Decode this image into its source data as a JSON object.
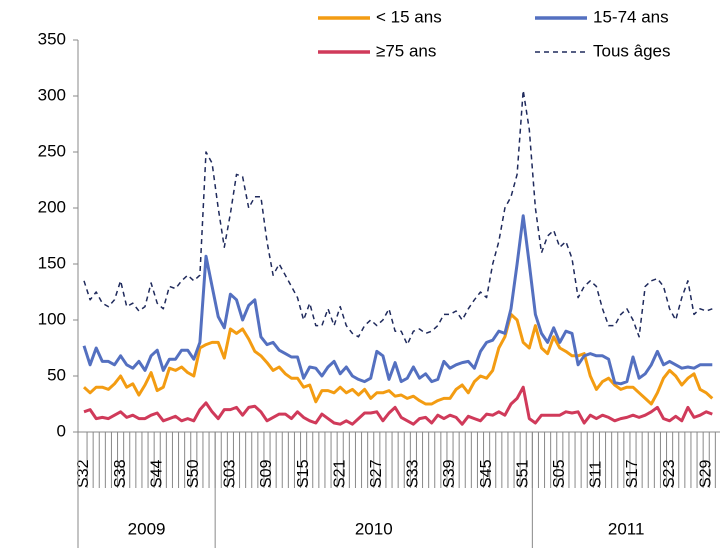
{
  "chart_data": {
    "type": "line",
    "categories": [
      "S32",
      null,
      null,
      null,
      null,
      null,
      "S38",
      null,
      null,
      null,
      null,
      null,
      "S44",
      null,
      null,
      null,
      null,
      null,
      "S50",
      null,
      null,
      null,
      null,
      null,
      "S03",
      null,
      null,
      null,
      null,
      null,
      "S09",
      null,
      null,
      null,
      null,
      null,
      "S15",
      null,
      null,
      null,
      null,
      null,
      "S21",
      null,
      null,
      null,
      null,
      null,
      "S27",
      null,
      null,
      null,
      null,
      null,
      "S33",
      null,
      null,
      null,
      null,
      null,
      "S39",
      null,
      null,
      null,
      null,
      null,
      "S45",
      null,
      null,
      null,
      null,
      null,
      "S51",
      null,
      null,
      null,
      null,
      null,
      "S05",
      null,
      null,
      null,
      null,
      null,
      "S11",
      null,
      null,
      null,
      null,
      null,
      "S17",
      null,
      null,
      null,
      null,
      null,
      "S23",
      null,
      null,
      null,
      null,
      null,
      "S29",
      null
    ],
    "years": [
      "2009",
      "2010",
      "2011"
    ],
    "series": [
      {
        "name": "< 15 ans",
        "color": "#f39c12",
        "dashed": false,
        "values": [
          40,
          35,
          40,
          40,
          38,
          43,
          50,
          40,
          43,
          33,
          42,
          53,
          37,
          40,
          57,
          55,
          58,
          53,
          50,
          75,
          78,
          80,
          80,
          66,
          92,
          88,
          92,
          83,
          72,
          68,
          62,
          55,
          58,
          52,
          48,
          48,
          40,
          42,
          27,
          37,
          37,
          35,
          40,
          35,
          38,
          33,
          38,
          30,
          35,
          35,
          37,
          32,
          33,
          30,
          32,
          28,
          25,
          25,
          28,
          30,
          30,
          38,
          42,
          35,
          45,
          50,
          48,
          55,
          75,
          85,
          105,
          100,
          80,
          75,
          95,
          75,
          70,
          85,
          75,
          72,
          68,
          68,
          70,
          50,
          38,
          45,
          48,
          42,
          38,
          40,
          40,
          35,
          30,
          25,
          35,
          48,
          55,
          50,
          42,
          48,
          52,
          38,
          35,
          30
        ]
      },
      {
        "name": "15-74 ans",
        "color": "#5470c0",
        "dashed": false,
        "values": [
          77,
          60,
          75,
          63,
          63,
          60,
          68,
          60,
          57,
          63,
          55,
          68,
          73,
          55,
          65,
          65,
          73,
          73,
          65,
          80,
          157,
          130,
          103,
          93,
          123,
          118,
          100,
          113,
          118,
          85,
          78,
          80,
          73,
          70,
          67,
          67,
          48,
          58,
          57,
          50,
          58,
          63,
          52,
          58,
          50,
          47,
          45,
          48,
          72,
          68,
          47,
          62,
          45,
          48,
          58,
          48,
          52,
          45,
          47,
          63,
          57,
          60,
          62,
          63,
          57,
          72,
          80,
          82,
          90,
          88,
          110,
          150,
          193,
          150,
          105,
          88,
          80,
          93,
          80,
          90,
          88,
          60,
          68,
          70,
          68,
          68,
          65,
          44,
          43,
          45,
          67,
          48,
          52,
          60,
          72,
          60,
          63,
          60,
          57,
          58,
          57,
          60,
          60,
          60
        ]
      },
      {
        "name": "≥75 ans",
        "color": "#d03a5a",
        "dashed": false,
        "values": [
          18,
          20,
          12,
          13,
          12,
          15,
          18,
          13,
          15,
          12,
          12,
          15,
          17,
          10,
          12,
          14,
          10,
          12,
          10,
          20,
          26,
          18,
          12,
          20,
          20,
          22,
          15,
          22,
          23,
          18,
          10,
          13,
          16,
          16,
          12,
          18,
          13,
          10,
          8,
          16,
          12,
          8,
          7,
          10,
          7,
          12,
          17,
          17,
          18,
          10,
          17,
          22,
          13,
          10,
          7,
          12,
          13,
          8,
          15,
          12,
          15,
          13,
          7,
          14,
          12,
          10,
          16,
          15,
          18,
          15,
          25,
          30,
          40,
          12,
          8,
          15,
          15,
          15,
          15,
          18,
          17,
          18,
          8,
          15,
          12,
          15,
          13,
          10,
          12,
          13,
          15,
          13,
          15,
          18,
          22,
          12,
          10,
          14,
          10,
          22,
          13,
          15,
          18,
          16
        ]
      },
      {
        "name": "Tous âges",
        "color": "#1f2a5c",
        "dashed": true,
        "values": [
          135,
          118,
          125,
          115,
          112,
          118,
          135,
          112,
          115,
          108,
          112,
          133,
          115,
          110,
          130,
          128,
          135,
          140,
          135,
          140,
          250,
          240,
          200,
          165,
          195,
          230,
          228,
          200,
          210,
          210,
          170,
          140,
          150,
          140,
          130,
          120,
          100,
          115,
          95,
          95,
          110,
          95,
          112,
          95,
          88,
          85,
          95,
          100,
          95,
          100,
          110,
          90,
          90,
          78,
          90,
          92,
          88,
          90,
          95,
          105,
          105,
          108,
          100,
          110,
          118,
          125,
          120,
          150,
          170,
          200,
          210,
          230,
          305,
          270,
          200,
          160,
          175,
          180,
          165,
          170,
          155,
          120,
          130,
          135,
          130,
          110,
          95,
          95,
          105,
          110,
          100,
          85,
          130,
          135,
          137,
          130,
          110,
          100,
          120,
          135,
          105,
          110,
          108,
          110
        ]
      }
    ],
    "ylim": [
      0,
      350
    ],
    "yticks": [
      0,
      50,
      100,
      150,
      200,
      250,
      300,
      350
    ],
    "grid": false
  }
}
